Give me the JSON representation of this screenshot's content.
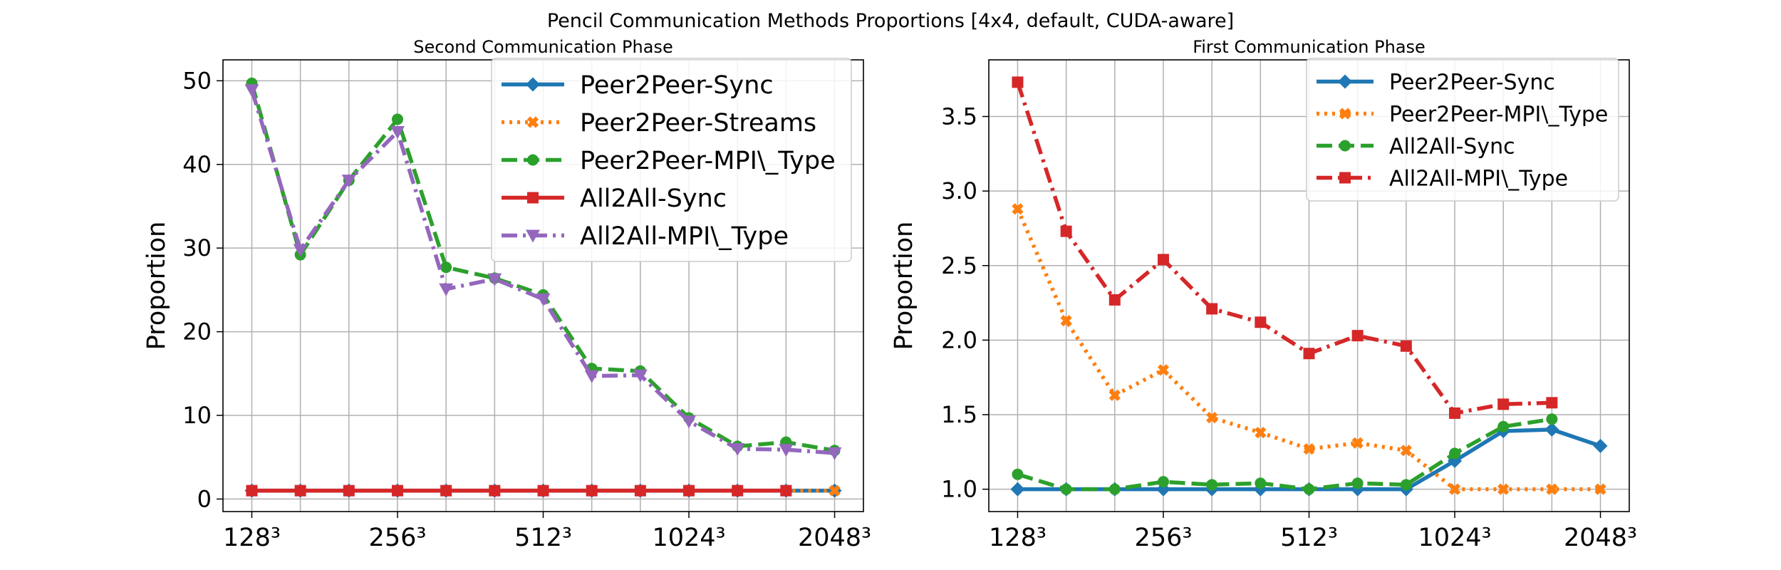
{
  "figure_title": "Pencil Communication Methods Proportions [4x4, default, CUDA-aware]",
  "colors": {
    "blue": "#1f77b4",
    "orange": "#ff7f0e",
    "green": "#2ca02c",
    "red": "#d62728",
    "purple": "#9467bd",
    "grid": "#b0b0b0"
  },
  "chart_data": [
    {
      "type": "line",
      "title": "Second Communication Phase",
      "xlabel": "",
      "ylabel": "Proportion",
      "x_tick_labels": [
        "128³",
        "256³",
        "512³",
        "1024³",
        "2048³"
      ],
      "x_tick_indices": [
        0,
        3,
        6,
        9,
        12
      ],
      "x_count": 13,
      "ylim": [
        -1.5,
        52.5
      ],
      "yticks": [
        0,
        10,
        20,
        30,
        40,
        50
      ],
      "grid": true,
      "legend_position": "top-right",
      "series": [
        {
          "name": "Peer2Peer-Sync",
          "color": "blue",
          "dash": "solid",
          "marker": "diamond",
          "values": [
            1,
            1,
            1,
            1,
            1,
            1,
            1,
            1,
            1,
            1,
            1,
            1,
            1
          ]
        },
        {
          "name": "Peer2Peer-Streams",
          "color": "orange",
          "dash": "dotted",
          "marker": "x",
          "values": [
            1,
            1,
            1,
            1,
            1,
            1,
            1,
            1,
            1,
            1,
            1,
            1,
            1
          ]
        },
        {
          "name": "Peer2Peer-MPI\\_Type",
          "color": "green",
          "dash": "dashed",
          "marker": "circle",
          "values": [
            49.7,
            29.2,
            38.1,
            45.4,
            27.7,
            26.4,
            24.4,
            15.6,
            15.3,
            9.7,
            6.3,
            6.8,
            5.8
          ]
        },
        {
          "name": "All2All-Sync",
          "color": "red",
          "dash": "solid",
          "marker": "square",
          "values": [
            1,
            1,
            1,
            1,
            1,
            1,
            1,
            1,
            1,
            1,
            1,
            1,
            null
          ]
        },
        {
          "name": "All2All-MPI\\_Type",
          "color": "purple",
          "dash": "dashdot",
          "marker": "triangle-down",
          "values": [
            48.9,
            29.8,
            38.1,
            43.9,
            25.1,
            26.3,
            23.9,
            14.7,
            14.8,
            9.3,
            6.0,
            5.9,
            5.5
          ]
        }
      ]
    },
    {
      "type": "line",
      "title": "First Communication Phase",
      "xlabel": "",
      "ylabel": "Proportion",
      "x_tick_labels": [
        "128³",
        "256³",
        "512³",
        "1024³",
        "2048³"
      ],
      "x_tick_indices": [
        0,
        3,
        6,
        9,
        12
      ],
      "x_count": 13,
      "ylim": [
        0.85,
        3.88
      ],
      "yticks": [
        1.0,
        1.5,
        2.0,
        2.5,
        3.0,
        3.5
      ],
      "grid": true,
      "legend_position": "top-right",
      "series": [
        {
          "name": "Peer2Peer-Sync",
          "color": "blue",
          "dash": "solid",
          "marker": "diamond",
          "values": [
            1.0,
            1.0,
            1.0,
            1.0,
            1.0,
            1.0,
            1.0,
            1.0,
            1.0,
            1.19,
            1.39,
            1.4,
            1.29
          ]
        },
        {
          "name": "Peer2Peer-MPI\\_Type",
          "color": "orange",
          "dash": "dotted",
          "marker": "x",
          "values": [
            2.88,
            2.13,
            1.63,
            1.8,
            1.48,
            1.38,
            1.27,
            1.31,
            1.26,
            1.0,
            1.0,
            1.0,
            1.0
          ]
        },
        {
          "name": "All2All-Sync",
          "color": "green",
          "dash": "dashed",
          "marker": "circle",
          "values": [
            1.1,
            1.0,
            1.0,
            1.05,
            1.03,
            1.04,
            1.0,
            1.04,
            1.03,
            1.24,
            1.42,
            1.47,
            null
          ]
        },
        {
          "name": "All2All-MPI\\_Type",
          "color": "red",
          "dash": "dashdot",
          "marker": "square",
          "values": [
            3.73,
            2.73,
            2.27,
            2.54,
            2.21,
            2.12,
            1.91,
            2.03,
            1.96,
            1.51,
            1.57,
            1.58,
            null
          ]
        }
      ]
    }
  ]
}
